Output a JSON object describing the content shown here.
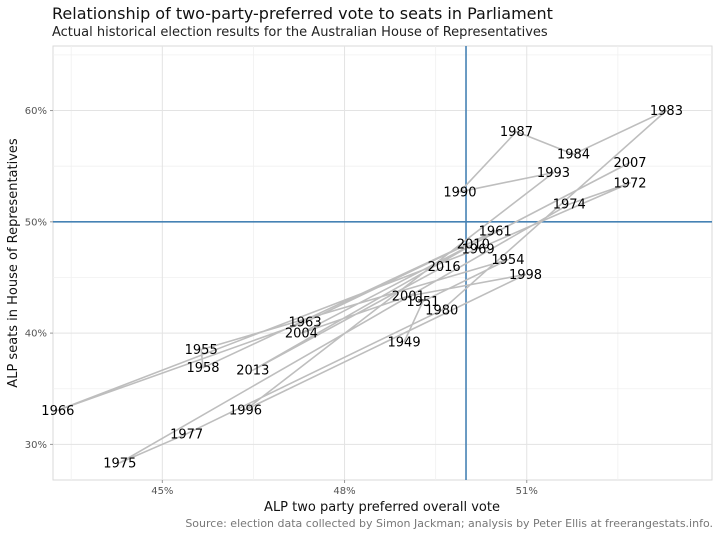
{
  "chart_data": {
    "type": "line",
    "title": "Relationship of two-party-preferred vote to seats in Parliament",
    "subtitle": "Actual historical election results for the Australian House of Representatives",
    "xlabel": "ALP two party preferred overall vote",
    "ylabel": "ALP seats in House of Representatives",
    "caption": "Source: election data collected by Simon Jackman; analysis by Peter Ellis at freerangestats.info.",
    "xlim": [
      0.432,
      0.5405
    ],
    "ylim": [
      0.268,
      0.658
    ],
    "x_ticks": [
      {
        "value": 0.45,
        "label": "45%"
      },
      {
        "value": 0.48,
        "label": "48%"
      },
      {
        "value": 0.51,
        "label": "51%"
      }
    ],
    "y_ticks": [
      {
        "value": 0.3,
        "label": "30%"
      },
      {
        "value": 0.4,
        "label": "40%"
      },
      {
        "value": 0.5,
        "label": "50%"
      },
      {
        "value": 0.6,
        "label": "60%"
      }
    ],
    "reference_lines": {
      "x": 0.5,
      "y": 0.5,
      "color": "#4682b4"
    },
    "grid": true,
    "line_color": "#bebebe",
    "points": [
      {
        "label": "1949",
        "x": 0.4898,
        "y": 0.3919
      },
      {
        "label": "1951",
        "x": 0.4929,
        "y": 0.4286
      },
      {
        "label": "1954",
        "x": 0.5069,
        "y": 0.4661
      },
      {
        "label": "1955",
        "x": 0.4564,
        "y": 0.3852
      },
      {
        "label": "1958",
        "x": 0.4567,
        "y": 0.3689
      },
      {
        "label": "1961",
        "x": 0.5048,
        "y": 0.4918
      },
      {
        "label": "1963",
        "x": 0.4735,
        "y": 0.4098
      },
      {
        "label": "1966",
        "x": 0.4328,
        "y": 0.3306
      },
      {
        "label": "1969",
        "x": 0.502,
        "y": 0.4758
      },
      {
        "label": "1972",
        "x": 0.527,
        "y": 0.5349
      },
      {
        "label": "1974",
        "x": 0.517,
        "y": 0.5159
      },
      {
        "label": "1975",
        "x": 0.443,
        "y": 0.2835
      },
      {
        "label": "1977",
        "x": 0.454,
        "y": 0.3095
      },
      {
        "label": "1980",
        "x": 0.496,
        "y": 0.4206
      },
      {
        "label": "1983",
        "x": 0.533,
        "y": 0.6
      },
      {
        "label": "1984",
        "x": 0.5177,
        "y": 0.5608
      },
      {
        "label": "1987",
        "x": 0.5083,
        "y": 0.5811
      },
      {
        "label": "1990",
        "x": 0.499,
        "y": 0.527
      },
      {
        "label": "1993",
        "x": 0.5144,
        "y": 0.5442
      },
      {
        "label": "1996",
        "x": 0.4637,
        "y": 0.3311
      },
      {
        "label": "1998",
        "x": 0.5098,
        "y": 0.4527
      },
      {
        "label": "2001",
        "x": 0.4905,
        "y": 0.4333
      },
      {
        "label": "2004",
        "x": 0.4729,
        "y": 0.4
      },
      {
        "label": "2007",
        "x": 0.527,
        "y": 0.5533
      },
      {
        "label": "2010",
        "x": 0.5012,
        "y": 0.48
      },
      {
        "label": "2013",
        "x": 0.4649,
        "y": 0.3667
      },
      {
        "label": "2016",
        "x": 0.4964,
        "y": 0.46
      }
    ]
  }
}
